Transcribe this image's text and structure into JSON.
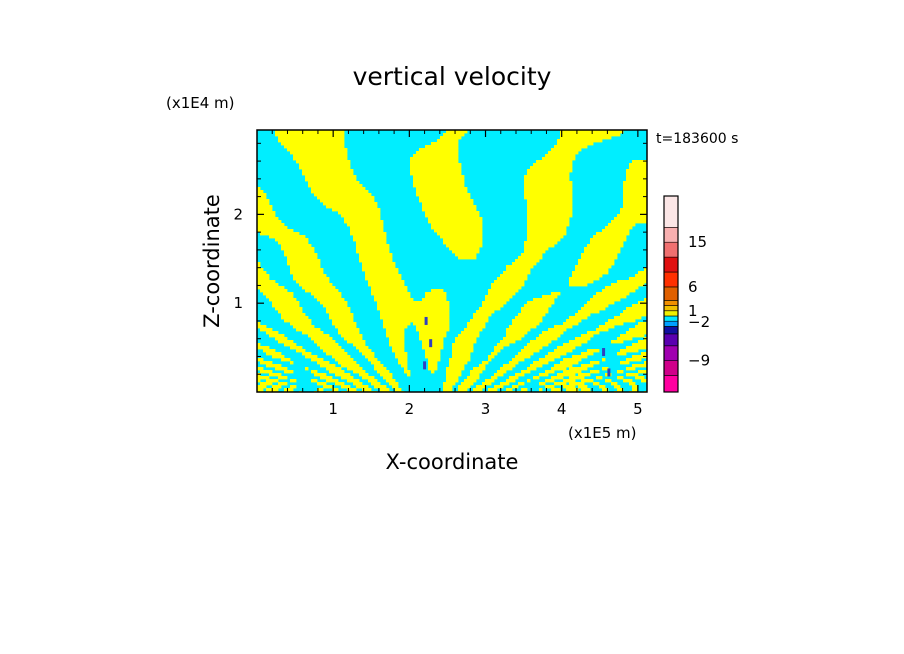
{
  "chart_data": {
    "type": "heatmap",
    "title": "vertical velocity",
    "time_label": "t=183600 s",
    "xlabel": "X-coordinate",
    "ylabel": "Z-coordinate",
    "x_unit": "(x1E5 m)",
    "y_unit": "(x1E4 m)",
    "xlim": [
      0,
      5.12
    ],
    "ylim": [
      0,
      2.95
    ],
    "x_ticks": [
      1,
      2,
      3,
      4,
      5
    ],
    "y_ticks": [
      1,
      2
    ],
    "colorbar": {
      "levels": [
        {
          "color": "#ff00a0"
        },
        {
          "color": "#d0008a"
        },
        {
          "color": "#a000b0"
        },
        {
          "color": "#5a00b0"
        },
        {
          "color": "#1010a0"
        },
        {
          "color": "#00a0ff"
        },
        {
          "color": "#00e8ff"
        },
        {
          "color": "#f0f000"
        },
        {
          "color": "#f0c000"
        },
        {
          "color": "#f09000"
        },
        {
          "color": "#e06000"
        },
        {
          "color": "#ff3000"
        },
        {
          "color": "#e01010"
        },
        {
          "color": "#f07070"
        },
        {
          "color": "#f8b0b0"
        },
        {
          "color": "#fbe6e6"
        }
      ],
      "labels": [
        "15",
        "6",
        "1",
        "−2",
        "−9"
      ],
      "label_values": [
        15,
        6,
        1,
        -2,
        -9
      ]
    },
    "field_colors": {
      "positive": "#ffff00",
      "negative": "#00eeff"
    }
  }
}
